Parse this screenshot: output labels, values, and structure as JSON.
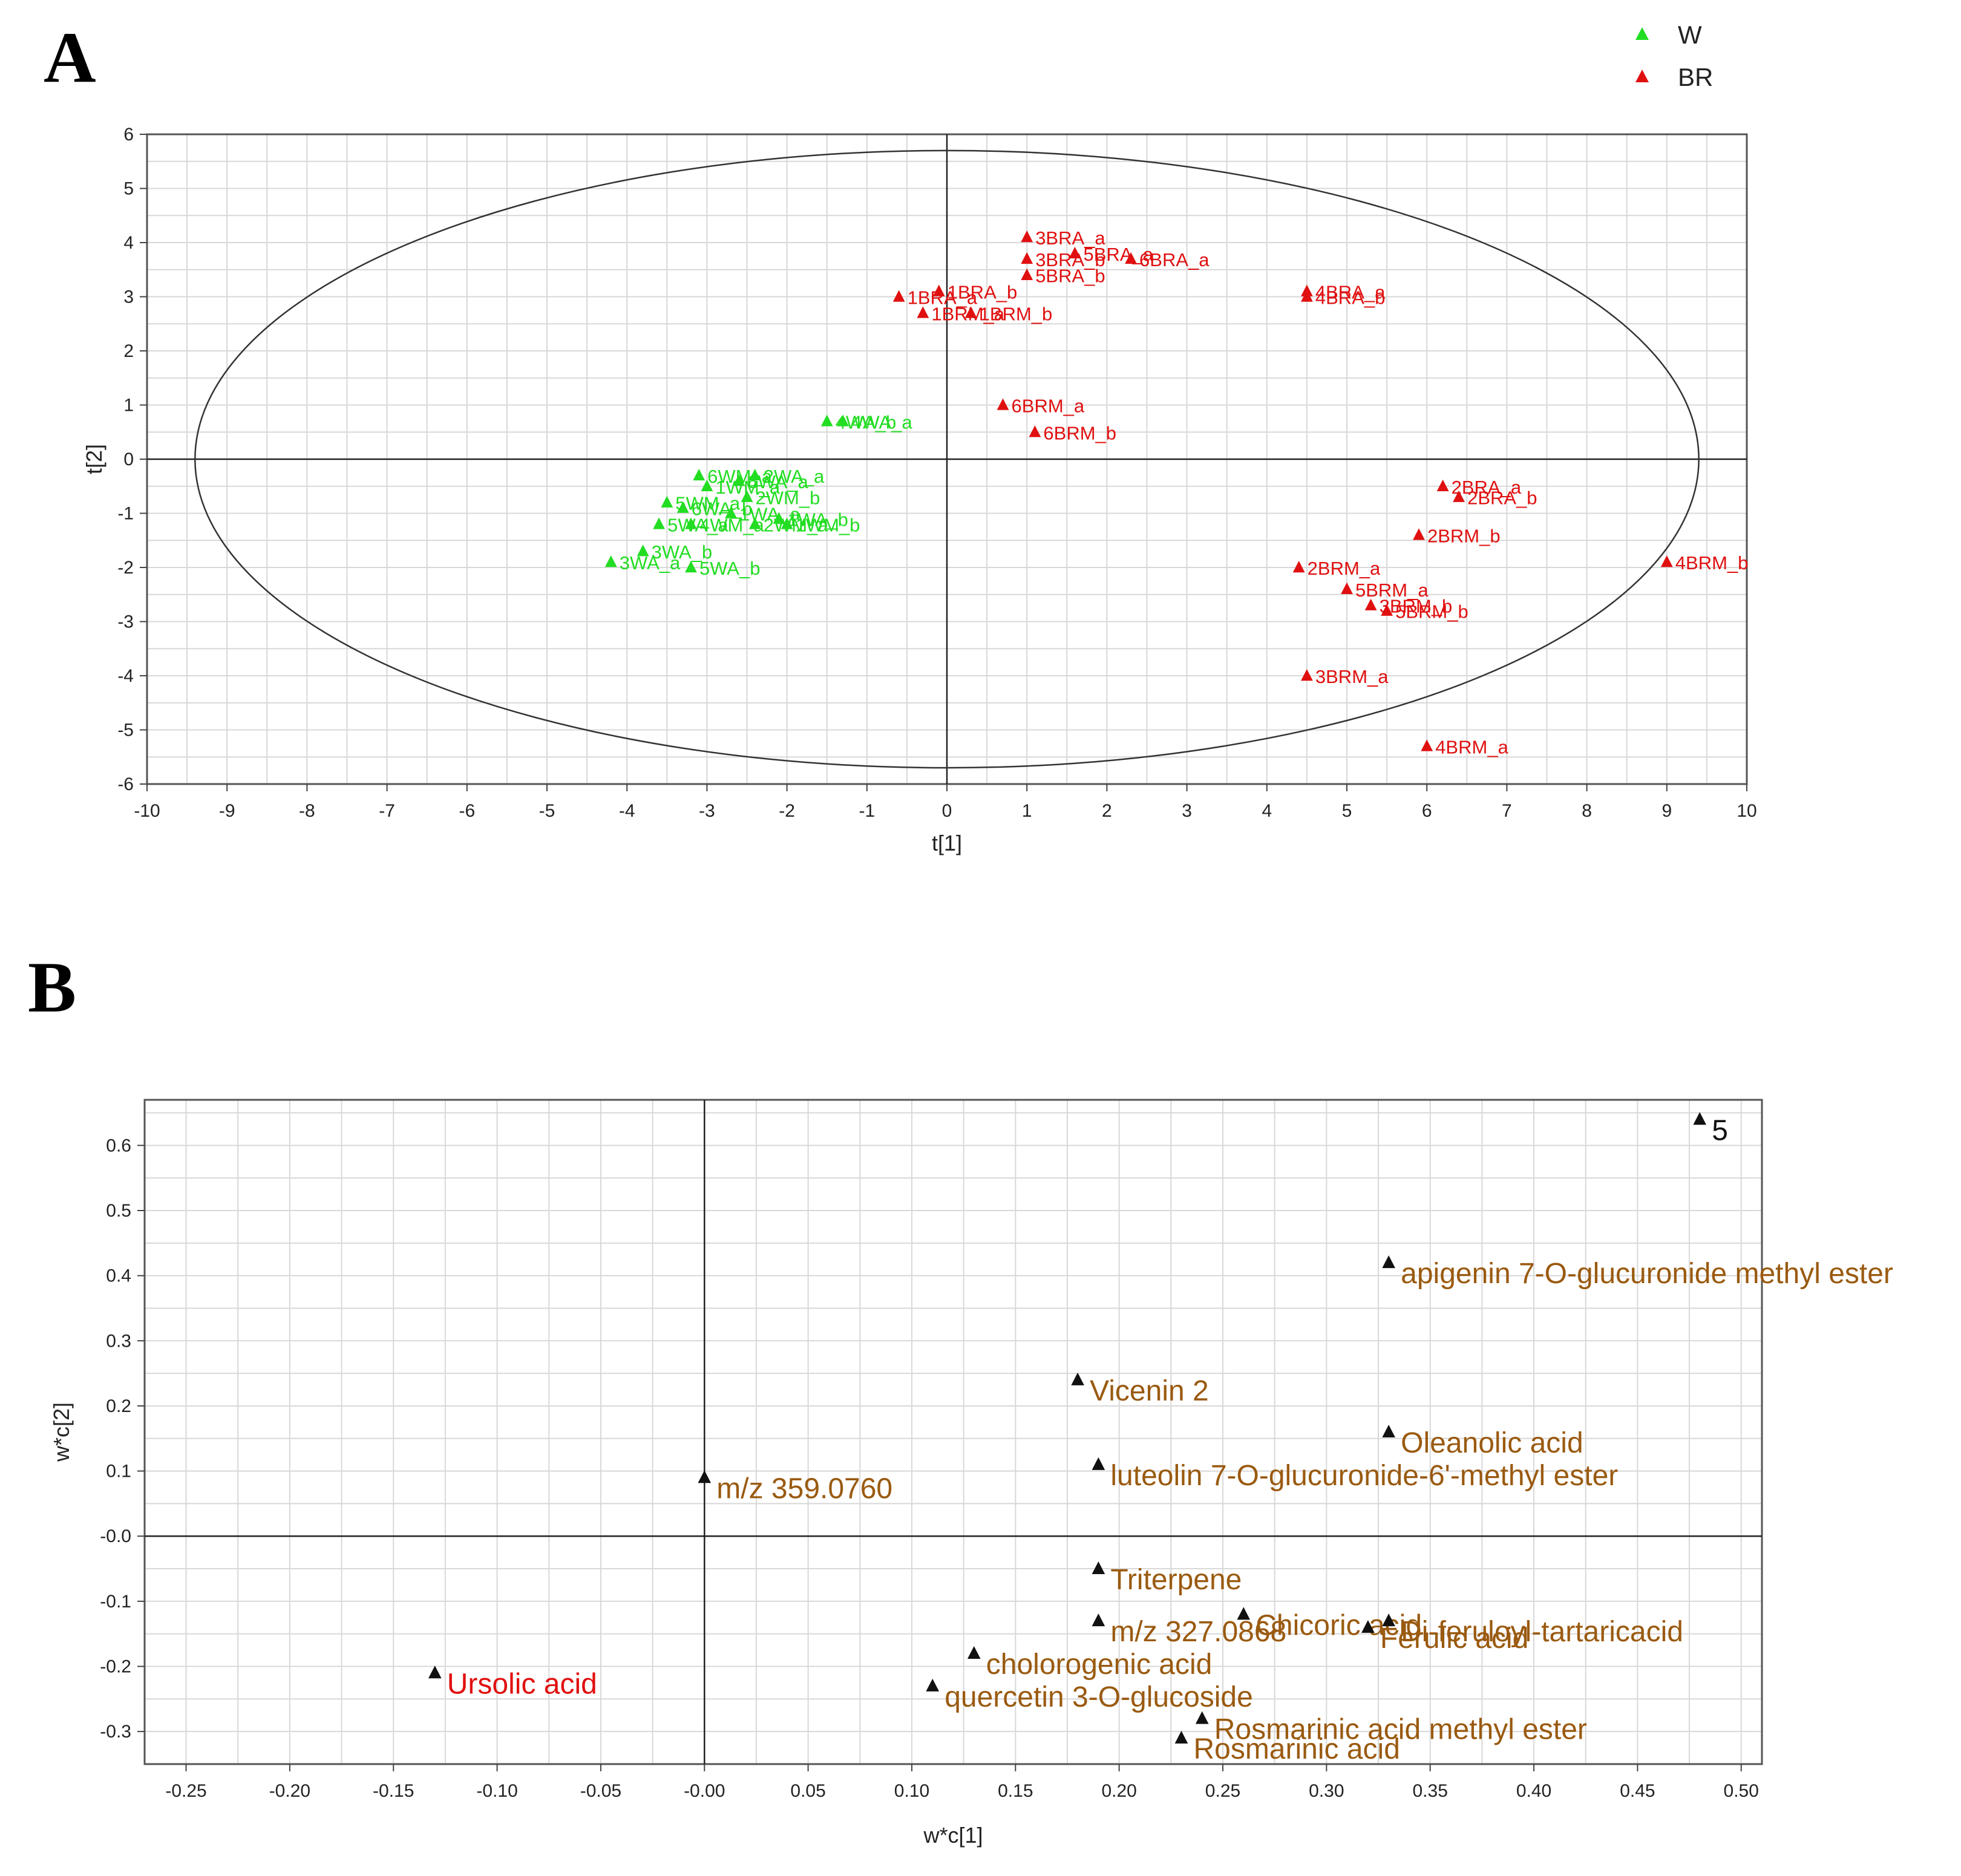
{
  "chart_data": [
    {
      "panel": "A",
      "type": "scatter",
      "xlabel": "t[1]",
      "ylabel": "t[2]",
      "xlim": [
        -10,
        10
      ],
      "ylim": [
        -6,
        6
      ],
      "x_ticks": [
        -10,
        -9,
        -8,
        -7,
        -6,
        -5,
        -4,
        -3,
        -2,
        -1,
        0,
        1,
        2,
        3,
        4,
        5,
        6,
        7,
        8,
        9,
        10
      ],
      "y_ticks": [
        -6,
        -5,
        -4,
        -3,
        -2,
        -1,
        0,
        1,
        2,
        3,
        4,
        5,
        6
      ],
      "grid": true,
      "legend_position": "top-right",
      "ellipse": {
        "center": [
          0,
          0
        ],
        "rx": 9.4,
        "ry": 5.7
      },
      "series": [
        {
          "name": "W",
          "color": "#22dd22",
          "points": [
            {
              "label": "4WA_b",
              "x": -1.5,
              "y": 0.7
            },
            {
              "label": "4WA_a",
              "x": -1.3,
              "y": 0.7
            },
            {
              "label": "6WM_a",
              "x": -3.1,
              "y": -0.3
            },
            {
              "label": "6WA_a",
              "x": -2.6,
              "y": -0.4
            },
            {
              "label": "2WA_a",
              "x": -2.4,
              "y": -0.3
            },
            {
              "label": "1WM_a",
              "x": -3.0,
              "y": -0.5
            },
            {
              "label": "2WM_b",
              "x": -2.5,
              "y": -0.7
            },
            {
              "label": "5WM_a",
              "x": -3.5,
              "y": -0.8
            },
            {
              "label": "6WA_b",
              "x": -3.3,
              "y": -0.9
            },
            {
              "label": "1WA_a",
              "x": -2.7,
              "y": -1.0
            },
            {
              "label": "5WA_a",
              "x": -3.6,
              "y": -1.2
            },
            {
              "label": "2WM_a",
              "x": -2.4,
              "y": -1.2
            },
            {
              "label": "1WA_b",
              "x": -2.1,
              "y": -1.1
            },
            {
              "label": "1WM_b",
              "x": -2.0,
              "y": -1.2
            },
            {
              "label": "4WM_a",
              "x": -3.2,
              "y": -1.2
            },
            {
              "label": "3WA_b",
              "x": -3.8,
              "y": -1.7
            },
            {
              "label": "3WA_a",
              "x": -4.2,
              "y": -1.9
            },
            {
              "label": "5WA_b",
              "x": -3.2,
              "y": -2.0
            }
          ]
        },
        {
          "name": "BR",
          "color": "#e01010",
          "points": [
            {
              "label": "3BRA_a",
              "x": 1.0,
              "y": 4.1
            },
            {
              "label": "3BRA_b",
              "x": 1.0,
              "y": 3.7
            },
            {
              "label": "5BRA_a",
              "x": 1.6,
              "y": 3.8
            },
            {
              "label": "6BRA_a",
              "x": 2.3,
              "y": 3.7
            },
            {
              "label": "5BRA_b",
              "x": 1.0,
              "y": 3.4
            },
            {
              "label": "1BRA_a",
              "x": -0.6,
              "y": 3.0
            },
            {
              "label": "1BRA_b",
              "x": -0.1,
              "y": 3.1
            },
            {
              "label": "1BRM_a",
              "x": -0.3,
              "y": 2.7
            },
            {
              "label": "1BRM_b",
              "x": 0.3,
              "y": 2.7
            },
            {
              "label": "4BRA_a",
              "x": 4.5,
              "y": 3.1
            },
            {
              "label": "4BRA_b",
              "x": 4.5,
              "y": 3.0
            },
            {
              "label": "6BRM_a",
              "x": 0.7,
              "y": 1.0
            },
            {
              "label": "6BRM_b",
              "x": 1.1,
              "y": 0.5
            },
            {
              "label": "2BRA_a",
              "x": 6.2,
              "y": -0.5
            },
            {
              "label": "2BRA_b",
              "x": 6.4,
              "y": -0.7
            },
            {
              "label": "2BRM_b",
              "x": 5.9,
              "y": -1.4
            },
            {
              "label": "2BRM_a",
              "x": 4.4,
              "y": -2.0
            },
            {
              "label": "5BRM_a",
              "x": 5.0,
              "y": -2.4
            },
            {
              "label": "3BRM_b",
              "x": 5.3,
              "y": -2.7
            },
            {
              "label": "5BRM_b",
              "x": 5.5,
              "y": -2.8
            },
            {
              "label": "3BRM_a",
              "x": 4.5,
              "y": -4.0
            },
            {
              "label": "4BRM_a",
              "x": 6.0,
              "y": -5.3
            },
            {
              "label": "4BRM_b",
              "x": 9.0,
              "y": -1.9
            }
          ]
        }
      ]
    },
    {
      "panel": "B",
      "type": "scatter",
      "xlabel": "w*c[1]",
      "ylabel": "w*c[2]",
      "xlim": [
        -0.27,
        0.51
      ],
      "ylim": [
        -0.35,
        0.67
      ],
      "x_ticks": [
        "-0.25",
        "-0.20",
        "-0.15",
        "-0.10",
        "-0.05",
        "-0.00",
        "0.05",
        "0.10",
        "0.15",
        "0.20",
        "0.25",
        "0.30",
        "0.35",
        "0.40",
        "0.45",
        "0.50"
      ],
      "y_ticks": [
        "-0.3",
        "-0.2",
        "-0.1",
        "-0.0",
        "0.1",
        "0.2",
        "0.3",
        "0.4",
        "0.5",
        "0.6"
      ],
      "grid": true,
      "points": [
        {
          "label": "5",
          "x": 0.48,
          "y": 0.64,
          "color": "#111111"
        },
        {
          "label": "apigenin 7-O-glucuronide methyl ester",
          "x": 0.33,
          "y": 0.42,
          "color": "#9a5a10"
        },
        {
          "label": "Vicenin 2",
          "x": 0.18,
          "y": 0.24,
          "color": "#9a5a10"
        },
        {
          "label": "Oleanolic acid",
          "x": 0.33,
          "y": 0.16,
          "color": "#9a5a10"
        },
        {
          "label": "luteolin 7-O-glucuronide-6'-methyl ester",
          "x": 0.19,
          "y": 0.11,
          "color": "#9a5a10"
        },
        {
          "label": "m/z 359.0760",
          "x": 0.0,
          "y": 0.09,
          "color": "#9a5a10"
        },
        {
          "label": "Triterpene",
          "x": 0.19,
          "y": -0.05,
          "color": "#9a5a10"
        },
        {
          "label": "m/z 327.0868",
          "x": 0.19,
          "y": -0.13,
          "color": "#9a5a10"
        },
        {
          "label": "Chicoric acid",
          "x": 0.26,
          "y": -0.12,
          "color": "#9a5a10"
        },
        {
          "label": "Di-feruloyl-tartaricacid",
          "x": 0.33,
          "y": -0.13,
          "color": "#9a5a10"
        },
        {
          "label": "Ferulic acid",
          "x": 0.32,
          "y": -0.14,
          "color": "#9a5a10"
        },
        {
          "label": "cholorogenic acid",
          "x": 0.13,
          "y": -0.18,
          "color": "#9a5a10"
        },
        {
          "label": "quercetin 3-O-glucoside",
          "x": 0.11,
          "y": -0.23,
          "color": "#9a5a10"
        },
        {
          "label": "Rosmarinic acid methyl ester",
          "x": 0.24,
          "y": -0.28,
          "color": "#9a5a10"
        },
        {
          "label": "Rosmarinic acid",
          "x": 0.23,
          "y": -0.31,
          "color": "#9a5a10"
        },
        {
          "label": "Ursolic acid",
          "x": -0.13,
          "y": -0.21,
          "color": "#e01010"
        }
      ]
    }
  ],
  "panels": {
    "a_letter": "A",
    "b_letter": "B"
  },
  "legend": [
    {
      "label": "W",
      "color": "#22dd22"
    },
    {
      "label": "BR",
      "color": "#e01010"
    }
  ]
}
